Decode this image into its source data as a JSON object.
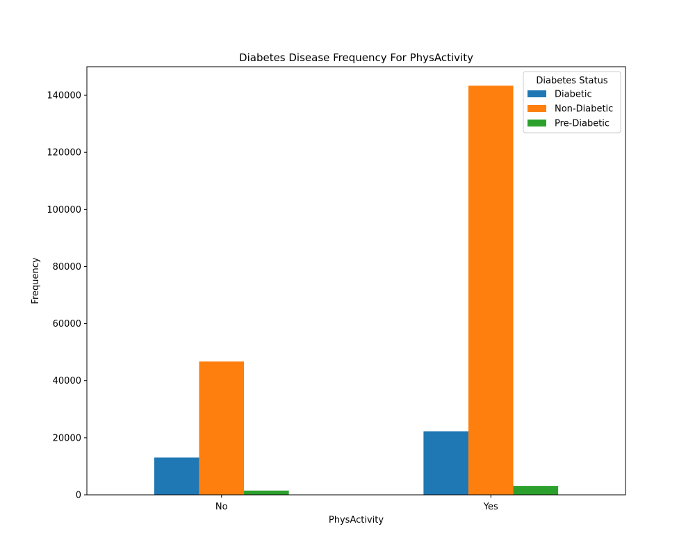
{
  "chart_data": {
    "type": "bar",
    "title": "Diabetes Disease Frequency For PhysActivity",
    "xlabel": "PhysActivity",
    "ylabel": "Frequency",
    "categories": [
      "No",
      "Yes"
    ],
    "ylim": [
      0,
      150000
    ],
    "yticks": [
      0,
      20000,
      40000,
      60000,
      80000,
      100000,
      120000,
      140000
    ],
    "legend": {
      "title": "Diabetes Status",
      "placement": "top-right"
    },
    "grid": false,
    "series": [
      {
        "name": "Diabetic",
        "color": "#1f77b4",
        "values": [
          13059,
          22273
        ]
      },
      {
        "name": "Non-Diabetic",
        "color": "#ff7f0e",
        "values": [
          46712,
          143351
        ]
      },
      {
        "name": "Pre-Diabetic",
        "color": "#2ca02c",
        "values": [
          1493,
          3138
        ]
      }
    ]
  }
}
